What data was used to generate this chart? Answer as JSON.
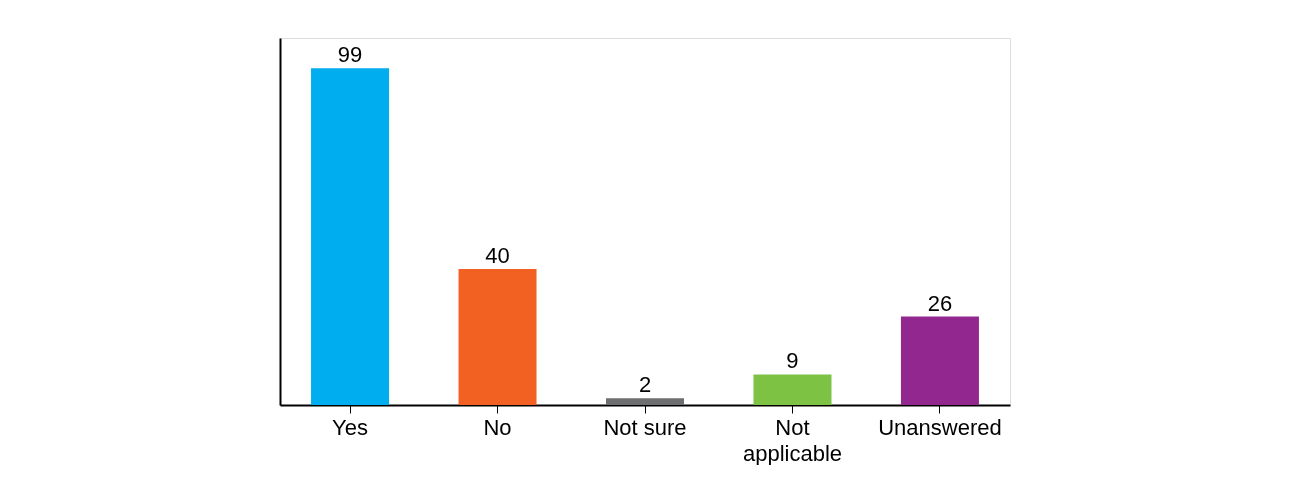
{
  "chart_data": {
    "type": "bar",
    "categories": [
      "Yes",
      "No",
      "Not sure",
      "Not applicable",
      "Unanswered"
    ],
    "values": [
      99,
      40,
      2,
      9,
      26
    ],
    "colors": [
      "#00adee",
      "#f26122",
      "#6d6e70",
      "#7dc242",
      "#92278f"
    ],
    "data_labels": true
  }
}
